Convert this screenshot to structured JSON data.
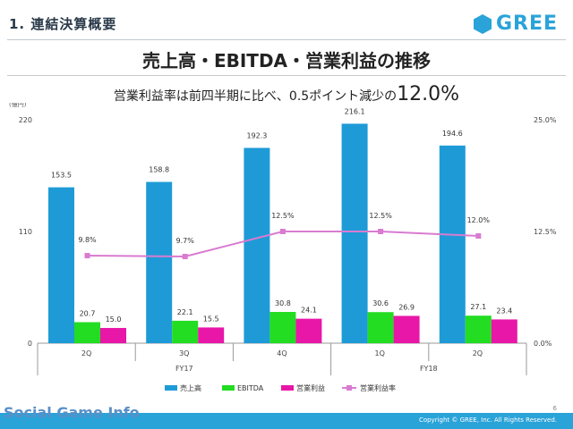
{
  "header": {
    "section_label": "1. 連結決算概要",
    "logo_text": "GREE",
    "title": "売上高・EBITDA・営業利益の推移",
    "subtitle_text": "営業利益率は前四半期に比べ、0.5ポイント減少の",
    "subtitle_highlight": "12.0%"
  },
  "footer": {
    "page_number": "6",
    "copyright": "Copyright © GREE, Inc. All Rights Reserved.",
    "watermark": "Social Game Info"
  },
  "colors": {
    "brand": "#2aa3d8",
    "sales": "#1e9bd7",
    "ebitda": "#22dd22",
    "operating_profit": "#e817a7",
    "margin_line": "#d97bd0"
  },
  "chart_data": {
    "type": "bar",
    "unit_label": "(億円)",
    "categories": [
      "2Q",
      "3Q",
      "4Q",
      "1Q",
      "2Q"
    ],
    "fiscal_groups": [
      {
        "label": "FY17",
        "span": [
          0,
          2
        ]
      },
      {
        "label": "FY18",
        "span": [
          3,
          4
        ]
      }
    ],
    "ylim": [
      0,
      220
    ],
    "yticks": [
      "0",
      "110",
      "220"
    ],
    "y2lim": [
      0,
      25
    ],
    "y2ticks": [
      "0.0%",
      "12.5%",
      "25.0%"
    ],
    "series": [
      {
        "name": "売上高",
        "values": [
          153.5,
          158.8,
          192.3,
          216.1,
          194.6
        ],
        "labels": [
          "153.5",
          "158.8",
          "192.3",
          "216.1",
          "194.6"
        ]
      },
      {
        "name": "EBITDA",
        "values": [
          20.7,
          22.1,
          30.8,
          30.6,
          27.1
        ],
        "labels": [
          "20.7",
          "22.1",
          "30.8",
          "30.6",
          "27.1"
        ]
      },
      {
        "name": "営業利益",
        "values": [
          15.0,
          15.5,
          24.1,
          26.9,
          23.4
        ],
        "labels": [
          "15.0",
          "15.5",
          "24.1",
          "26.9",
          "23.4"
        ]
      }
    ],
    "line_series": {
      "name": "営業利益率",
      "axis": "right",
      "values": [
        9.8,
        9.7,
        12.5,
        12.5,
        12.0
      ],
      "labels": [
        "9.8%",
        "9.7%",
        "12.5%",
        "12.5%",
        "12.0%"
      ]
    },
    "legend_position": "bottom"
  }
}
